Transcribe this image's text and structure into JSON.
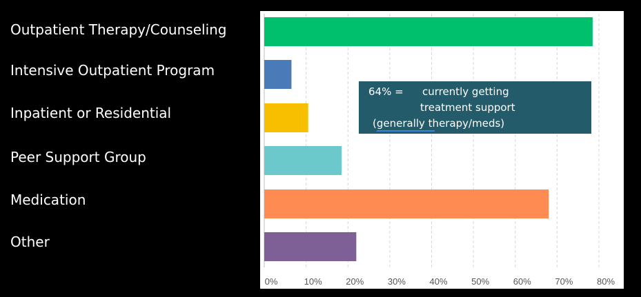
{
  "chart_data": {
    "type": "bar",
    "orientation": "horizontal",
    "categories": [
      "Outpatient Therapy/Counseling",
      "Intensive Outpatient Program",
      "Inpatient or Residential",
      "Peer Support Group",
      "Medication",
      "Other"
    ],
    "values": [
      78.5,
      6.5,
      10.5,
      18.5,
      68,
      22
    ],
    "colors": [
      "#00c06d",
      "#4b7ab8",
      "#f8bf00",
      "#6bc9cc",
      "#fe8c52",
      "#7e5f96"
    ],
    "xlim": [
      0,
      80
    ],
    "xticks": [
      "0%",
      "10%",
      "20%",
      "30%",
      "40%",
      "50%",
      "60%",
      "70%",
      "80%"
    ],
    "grid": "vertical dashed",
    "annotation": {
      "line1a": "64% =",
      "line1b": "currently getting",
      "line2": "treatment support",
      "line3": "(generally therapy/meds)",
      "color": "#235b6a"
    }
  }
}
